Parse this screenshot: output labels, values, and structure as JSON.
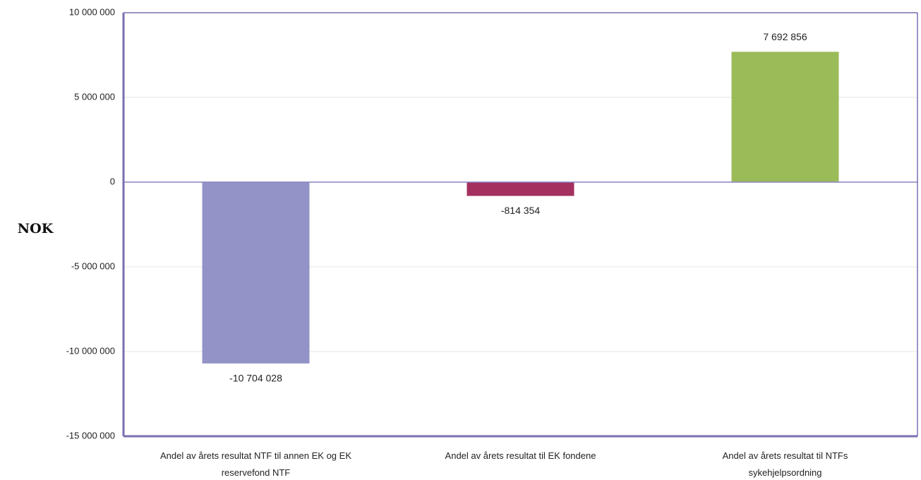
{
  "chart_data": {
    "type": "bar",
    "title": "",
    "xlabel": "",
    "ylabel": "NOK",
    "ylim": [
      -15000000,
      10000000
    ],
    "yticks": [
      {
        "value": 10000000,
        "label": "10 000 000"
      },
      {
        "value": 5000000,
        "label": "5 000 000"
      },
      {
        "value": 0,
        "label": "0"
      },
      {
        "value": -5000000,
        "label": "-5 000 000"
      },
      {
        "value": -10000000,
        "label": "-10 000 000"
      },
      {
        "value": -15000000,
        "label": "-15 000 000"
      }
    ],
    "categories": [
      [
        "Andel av årets resultat NTF til annen EK og EK",
        "reservefond NTF"
      ],
      [
        "Andel av årets resultat til EK fondene"
      ],
      [
        "Andel av årets resultat til NTFs",
        "sykehjelpsordning"
      ]
    ],
    "values": [
      -10704028,
      -814354,
      7692856
    ],
    "data_labels": [
      "-10 704 028",
      "-814 354",
      "7 692 856"
    ],
    "colors": [
      "#9393c8",
      "#a3305f",
      "#9bbb59"
    ],
    "grid": true,
    "legend": "none",
    "frame_color": "#7a6fb0",
    "zero_line_color": "#8c83c0",
    "grid_color": "#e6e6e6"
  }
}
